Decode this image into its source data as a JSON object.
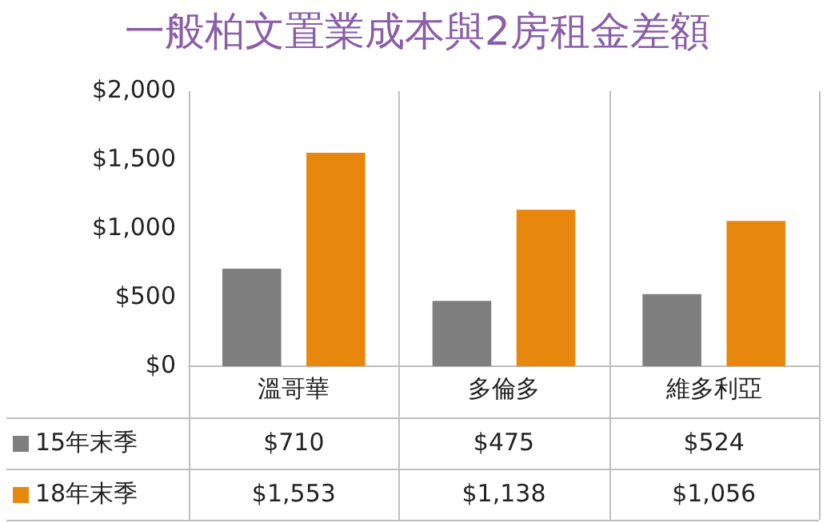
{
  "chart_data": {
    "type": "bar",
    "title": "一般柏文置業成本與2房租金差額",
    "categories": [
      "溫哥華",
      "多倫多",
      "維多利亞"
    ],
    "series": [
      {
        "name": "15年末季",
        "color": "#7f7f7f",
        "values": [
          710,
          475,
          524
        ],
        "value_labels": [
          "$710",
          "$475",
          "$524"
        ]
      },
      {
        "name": "18年末季",
        "color": "#e8870e",
        "values": [
          1553,
          1138,
          1056
        ],
        "value_labels": [
          "$1,553",
          "$1,138",
          "$1,056"
        ]
      }
    ],
    "ylim": [
      0,
      2000
    ],
    "yticks": [
      {
        "value": 0,
        "label": "$0"
      },
      {
        "value": 500,
        "label": "$500"
      },
      {
        "value": 1000,
        "label": "$1,000"
      },
      {
        "value": 1500,
        "label": "$1,500"
      },
      {
        "value": 2000,
        "label": "$2,000"
      }
    ],
    "grid": false,
    "legend": "bottom left"
  }
}
